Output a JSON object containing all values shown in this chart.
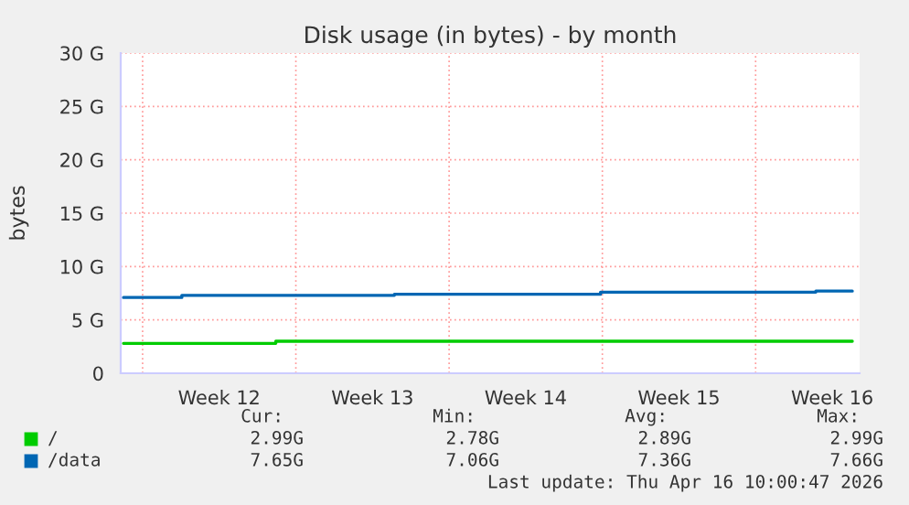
{
  "chart_data": {
    "type": "step",
    "title": "Disk usage (in bytes) - by month",
    "ylabel": "bytes",
    "series": [
      {
        "name": "/",
        "color": "#00cc00",
        "x": [
          "2026-03-14T03:00",
          "2026-03-21T02:00",
          "2026-04-16T10:00"
        ],
        "values": [
          2.8,
          3.0,
          3.0
        ]
      },
      {
        "name": "/data",
        "color": "#0066b3",
        "x": [
          "2026-03-14T03:00",
          "2026-03-16T19:00",
          "2026-03-26T12:00",
          "2026-04-04T22:00",
          "2026-04-14T18:00",
          "2026-04-16T10:00"
        ],
        "values": [
          7.1,
          7.3,
          7.4,
          7.6,
          7.7,
          7.7
        ]
      }
    ],
    "xlim": [
      "2026-03-14T00:00",
      "2026-04-16T18:00"
    ],
    "xticks": [
      {
        "value": "2026-03-15",
        "label": null
      },
      {
        "value": "2026-03-18T12:00",
        "label": "Week 12"
      },
      {
        "value": "2026-03-22",
        "label": null
      },
      {
        "value": "2026-03-25T12:00",
        "label": "Week 13"
      },
      {
        "value": "2026-03-29",
        "label": null
      },
      {
        "value": "2026-04-01T12:00",
        "label": "Week 14"
      },
      {
        "value": "2026-04-05",
        "label": null
      },
      {
        "value": "2026-04-08T12:00",
        "label": "Week 15"
      },
      {
        "value": "2026-04-12",
        "label": null
      },
      {
        "value": "2026-04-15T12:00",
        "label": "Week 16"
      }
    ],
    "ylim": [
      0,
      30
    ],
    "yticks": [
      {
        "value": 0,
        "label": "0"
      },
      {
        "value": 5,
        "label": "5 G"
      },
      {
        "value": 10,
        "label": "10 G"
      },
      {
        "value": 15,
        "label": "15 G"
      },
      {
        "value": 20,
        "label": "20 G"
      },
      {
        "value": 25,
        "label": "25 G"
      },
      {
        "value": 30,
        "label": "30 G"
      }
    ],
    "grid": true,
    "legend": "bottom",
    "annotations": [
      "Cur:",
      "Min:",
      "Avg:",
      "Max:",
      "2.99G",
      "2.78G",
      "2.89G",
      "2.99G",
      "7.65G",
      "7.06G",
      "7.36G",
      "7.66G",
      "Last update: Thu Apr 16 10:00:47 2026"
    ]
  }
}
